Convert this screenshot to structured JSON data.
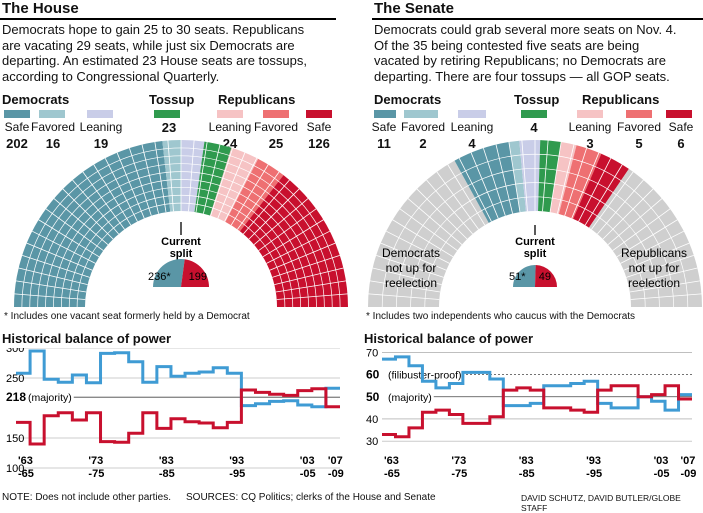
{
  "house": {
    "title": "The House",
    "intro": [
      "Democrats hope to gain 25 to 30 seats. Republicans",
      "are vacating 29 seats, while just six Democrats are",
      "departing. An estimated 23 House seats are tossups,",
      "according to Congressional Quarterly."
    ],
    "dem_label": "Democrats",
    "toss_label": "Tossup",
    "rep_label": "Republicans",
    "cats": [
      "Safe",
      "Favored",
      "Leaning",
      "",
      "Leaning",
      "Favored",
      "Safe"
    ],
    "counts": [
      "202",
      "16",
      "19",
      "23",
      "24",
      "25",
      "126"
    ],
    "split_label": [
      "Current",
      "split"
    ],
    "split_dem": "236*",
    "split_rep": "199",
    "note": "* Includes one vacant seat formerly held by a Democrat"
  },
  "senate": {
    "title": "The Senate",
    "intro": [
      "Democrats could grab several more seats on Nov. 4.",
      "Of the 35 being contested five seats are being",
      "vacated by retiring Republicans; no Democrats are",
      "departing. There are four tossups — all GOP seats."
    ],
    "dem_label": "Democrats",
    "toss_label": "Tossup",
    "rep_label": "Republicans",
    "cats": [
      "Safe",
      "Favored",
      "Leaning",
      "",
      "Leaning",
      "Favored",
      "Safe"
    ],
    "counts": [
      "11",
      "2",
      "4",
      "4",
      "3",
      "5",
      "6"
    ],
    "split_label": [
      "Current",
      "split"
    ],
    "split_dem": "51*",
    "split_rep": "49",
    "dem_notup": [
      "Democrats",
      "not up for",
      "reelection"
    ],
    "rep_notup": [
      "Republicans",
      "not up for",
      "reelection"
    ],
    "note": "* Includes two independents who caucus with the Democrats"
  },
  "colors": {
    "dem_safe": "#5a96a6",
    "dem_favored": "#9fc7cf",
    "dem_leaning": "#c9cde8",
    "tossup": "#2f9a4e",
    "rep_leaning": "#f6c3c4",
    "rep_favored": "#ee7072",
    "rep_safe": "#c8102e",
    "grey": "#cfcfcf",
    "dem_line": "#3f9bd4",
    "rep_line": "#c8102e"
  },
  "hist_title": "Historical balance of power",
  "chart_data": [
    {
      "type": "line",
      "title": "Historical balance of power",
      "chamber": "House",
      "x": [
        "'63-'65",
        "'65-'67",
        "'67-'69",
        "'69-'71",
        "'71-'73",
        "'73-'75",
        "'75-'77",
        "'77-'79",
        "'79-'81",
        "'81-'83",
        "'83-'85",
        "'85-'87",
        "'87-'89",
        "'89-'91",
        "'91-'93",
        "'93-'95",
        "'95-'97",
        "'97-'99",
        "'99-'01",
        "'01-'03",
        "'03-'05",
        "'05-'07",
        "'07-'09"
      ],
      "series": [
        {
          "name": "Democrats",
          "values": [
            258,
            295,
            248,
            243,
            255,
            242,
            291,
            292,
            277,
            243,
            269,
            253,
            258,
            260,
            267,
            258,
            204,
            207,
            211,
            212,
            205,
            202,
            233
          ]
        },
        {
          "name": "Republicans",
          "values": [
            176,
            140,
            187,
            192,
            180,
            192,
            144,
            143,
            158,
            192,
            166,
            182,
            177,
            175,
            167,
            176,
            230,
            226,
            223,
            221,
            229,
            232,
            202
          ]
        }
      ],
      "ylim": [
        130,
        300
      ],
      "yticks": [
        "300",
        "250",
        "150",
        "100"
      ],
      "ref_lines": [
        {
          "value": 218,
          "label": "218",
          "sub": "(majority)"
        }
      ],
      "xtick_labels": [
        [
          "'63",
          "-65"
        ],
        [
          "'73",
          "-75"
        ],
        [
          "'83",
          "-85"
        ],
        [
          "'93",
          "-95"
        ],
        [
          "'03",
          "-05"
        ],
        [
          "'07",
          "-09"
        ]
      ]
    },
    {
      "type": "line",
      "title": "Historical balance of power",
      "chamber": "Senate",
      "x": [
        "'63-'65",
        "'65-'67",
        "'67-'69",
        "'69-'71",
        "'71-'73",
        "'73-'75",
        "'75-'77",
        "'77-'79",
        "'79-'81",
        "'81-'83",
        "'83-'85",
        "'85-'87",
        "'87-'89",
        "'89-'91",
        "'91-'93",
        "'93-'95",
        "'95-'97",
        "'97-'99",
        "'99-'01",
        "'01-'03",
        "'03-'05",
        "'05-'07",
        "'07-'09"
      ],
      "series": [
        {
          "name": "Democrats",
          "values": [
            67,
            68,
            64,
            57,
            54,
            56,
            61,
            61,
            58,
            46,
            46,
            47,
            55,
            55,
            56,
            57,
            47,
            45,
            45,
            50,
            48,
            44,
            51
          ]
        },
        {
          "name": "Republicans",
          "values": [
            33,
            32,
            36,
            43,
            44,
            42,
            38,
            38,
            41,
            53,
            54,
            53,
            45,
            45,
            44,
            43,
            53,
            55,
            55,
            50,
            51,
            55,
            49
          ]
        }
      ],
      "ylim": [
        26,
        72
      ],
      "yticks": [
        "70",
        "40",
        "30"
      ],
      "ref_lines": [
        {
          "value": 60,
          "label": "60",
          "sub": "(filibuster-proof)"
        },
        {
          "value": 50,
          "label": "50",
          "sub": "(majority)"
        }
      ],
      "xtick_labels": [
        [
          "'63",
          "-65"
        ],
        [
          "'73",
          "-75"
        ],
        [
          "'83",
          "-85"
        ],
        [
          "'93",
          "-95"
        ],
        [
          "'03",
          "-05"
        ],
        [
          "'07",
          "-09"
        ]
      ]
    }
  ],
  "footer": {
    "note": "NOTE: Does not include other parties.",
    "sources": "SOURCES: CQ Politics; clerks of the House and Senate",
    "credit": "DAVID SCHUTZ, DAVID BUTLER/GLOBE STAFF"
  }
}
